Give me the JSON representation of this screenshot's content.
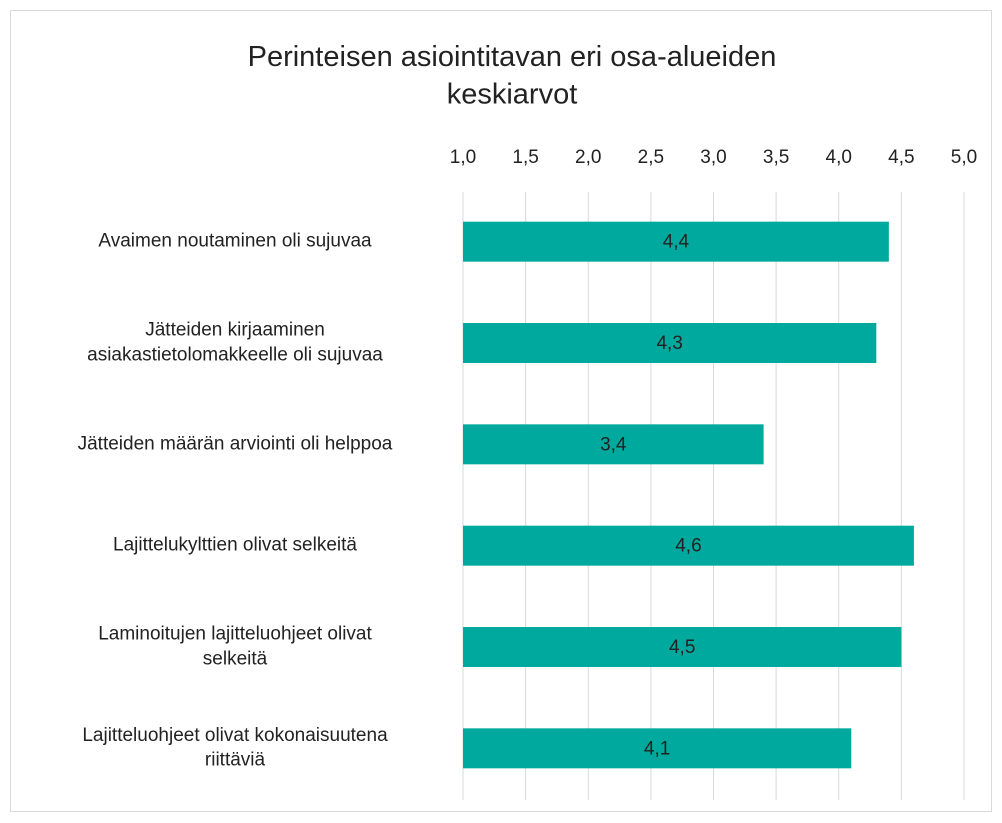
{
  "chart_data": {
    "type": "bar",
    "orientation": "horizontal",
    "title": "Perinteisen asiointitavan eri osa-alueiden\nkeskiarvot",
    "categories": [
      "Avaimen noutaminen oli sujuvaa",
      "Jätteiden kirjaaminen\nasiakastietolomakkeelle oli sujuvaa",
      "Jätteiden määrän arviointi oli helppoa",
      "Lajittelukylttien olivat selkeitä",
      "Laminoitujen lajitteluohjeet olivat\nselkeitä",
      "Lajitteluohjeet olivat kokonaisuutena\nriittäviä"
    ],
    "values": [
      4.4,
      4.3,
      3.4,
      4.6,
      4.5,
      4.1
    ],
    "value_labels": [
      "4,4",
      "4,3",
      "3,4",
      "4,6",
      "4,5",
      "4,1"
    ],
    "color": "#00a99d",
    "xlim": [
      1,
      5
    ],
    "xticks": [
      {
        "value": 1,
        "label": "1,0"
      },
      {
        "value": 1.5,
        "label": "1,5"
      },
      {
        "value": 2,
        "label": "2,0"
      },
      {
        "value": 2.5,
        "label": "2,5"
      },
      {
        "value": 3,
        "label": "3,0"
      },
      {
        "value": 3.5,
        "label": "3,5"
      },
      {
        "value": 4,
        "label": "4,0"
      },
      {
        "value": 4.5,
        "label": "4,5"
      },
      {
        "value": 5,
        "label": "5,0"
      }
    ],
    "grid": true
  }
}
